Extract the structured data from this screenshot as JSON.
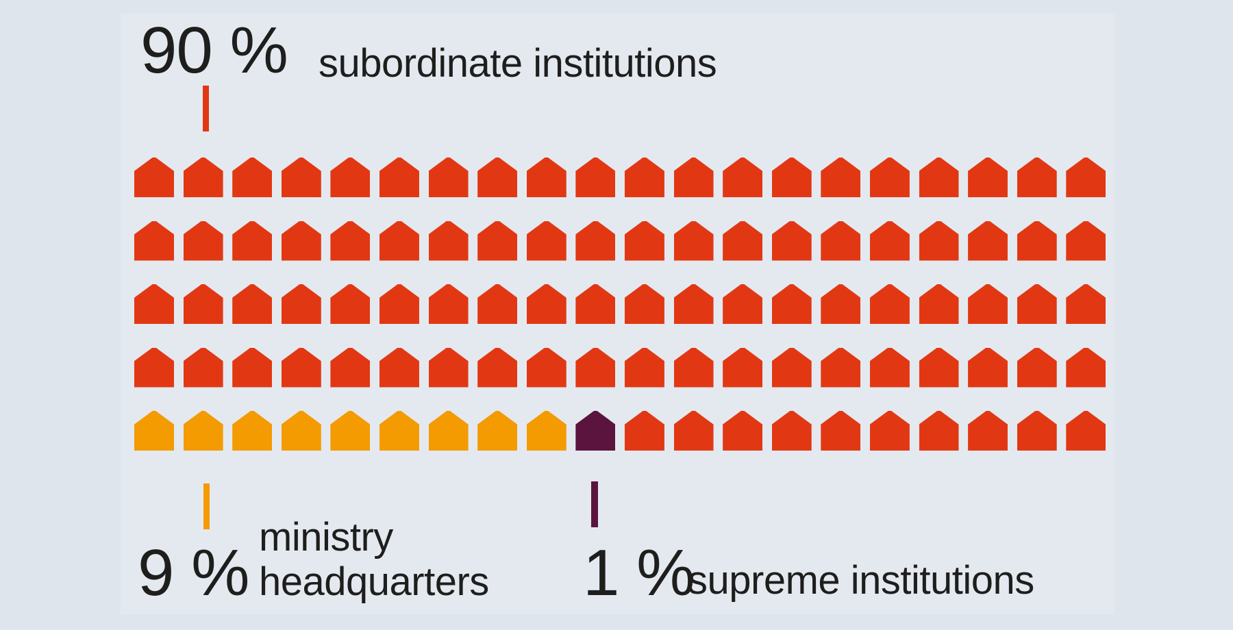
{
  "chart_data": {
    "type": "pictogram",
    "unit_icon": "house",
    "total_units": 100,
    "unit_value_pct": 1,
    "grid": {
      "rows": 5,
      "columns": 20
    },
    "series": [
      {
        "name": "subordinate institutions",
        "value_pct": 90,
        "units": 90,
        "color": "#e13813"
      },
      {
        "name": "ministry headquarters",
        "value_pct": 9,
        "units": 9,
        "color": "#f39b00"
      },
      {
        "name": "supreme institutions",
        "value_pct": 1,
        "units": 1,
        "color": "#5a143d"
      }
    ],
    "bottom_row_sequence": [
      {
        "series": 1,
        "count": 9
      },
      {
        "series": 2,
        "count": 1
      },
      {
        "series": 0,
        "count": 10
      }
    ],
    "legend_position": "callouts",
    "title": "",
    "annotations": [
      {
        "value": "90 %",
        "text": "subordinate institutions",
        "position": "top-left"
      },
      {
        "value": "9 %",
        "text": "ministry headquarters",
        "position": "bottom-left"
      },
      {
        "value": "1 %",
        "text": "supreme institutions",
        "position": "bottom-middle"
      }
    ]
  },
  "labels": {
    "subordinate": {
      "value": "90 %",
      "text": "subordinate institutions"
    },
    "ministry": {
      "value": "9 %",
      "line1": "ministry",
      "line2": "headquarters"
    },
    "supreme": {
      "value": "1 %",
      "text": "supreme institutions"
    }
  },
  "colors": {
    "background_outer": "#dfe5ed",
    "background_panel": "#e4e9f0",
    "red": "#e13813",
    "orange": "#f39b00",
    "purple": "#5a143d",
    "text": "#1e1e1c"
  }
}
